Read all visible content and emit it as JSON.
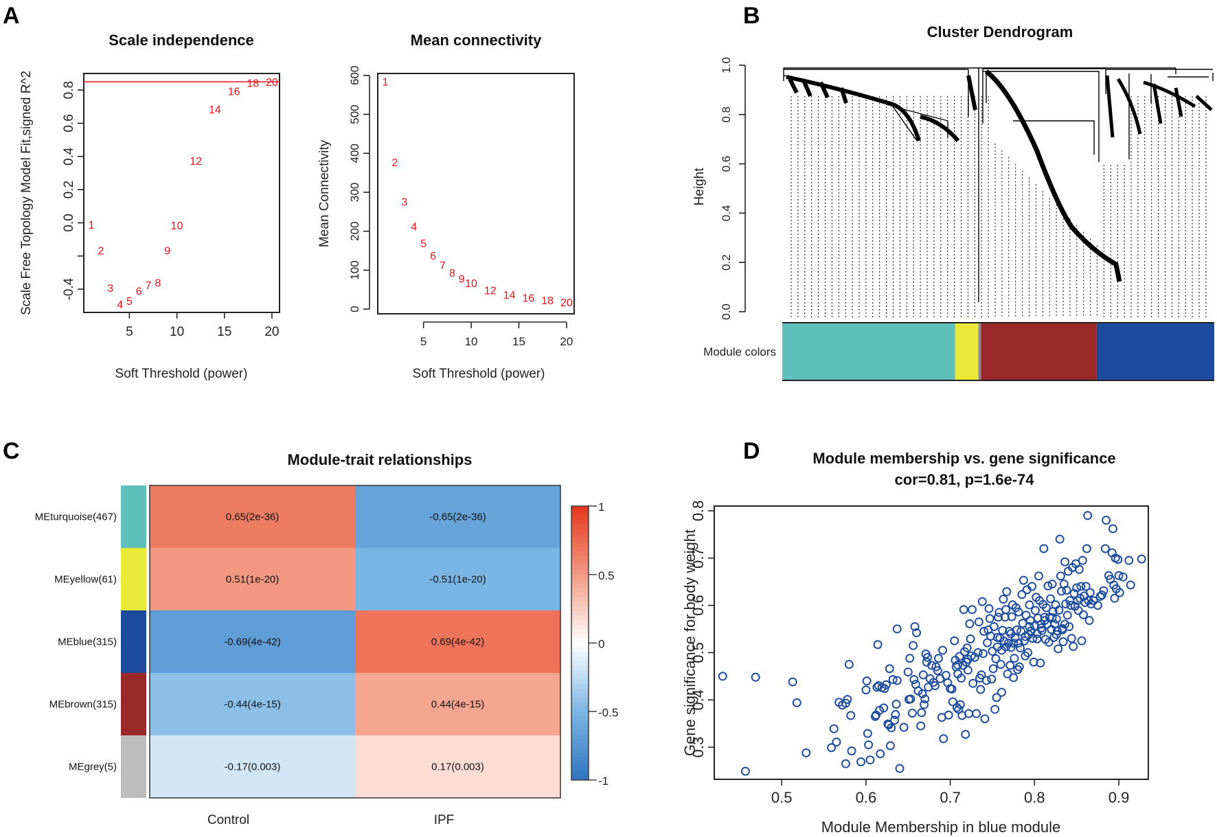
{
  "panel_labels": {
    "a": "A",
    "b": "B",
    "c": "C",
    "d": "D"
  },
  "chart_data": [
    {
      "id": "scale_independence",
      "type": "scatter",
      "marker": "text-label",
      "title": "Scale independence",
      "xlabel": "Soft Threshold (power)",
      "ylabel": "Scale Free Topology Model Fit,signed R^2",
      "xlim": [
        0.2,
        20.8
      ],
      "ylim": [
        -0.54,
        0.9
      ],
      "xticks": [
        5,
        10,
        15,
        20
      ],
      "yticks": [
        -0.4,
        -0.2,
        0.0,
        0.2,
        0.4,
        0.6,
        0.8
      ],
      "ytick_labels": [
        "-0.4",
        "",
        "0.0",
        "0.2",
        "0.4",
        "0.6",
        "0.8"
      ],
      "hline": {
        "y": 0.85,
        "color": "#e8121b"
      },
      "point_color": "#e8121b",
      "points": [
        {
          "x": 1,
          "y": -0.01,
          "label": "1"
        },
        {
          "x": 2,
          "y": -0.165,
          "label": "2"
        },
        {
          "x": 3,
          "y": -0.39,
          "label": "3"
        },
        {
          "x": 4,
          "y": -0.49,
          "label": "4"
        },
        {
          "x": 5,
          "y": -0.47,
          "label": "5"
        },
        {
          "x": 6,
          "y": -0.41,
          "label": "6"
        },
        {
          "x": 7,
          "y": -0.375,
          "label": "7"
        },
        {
          "x": 8,
          "y": -0.36,
          "label": "8"
        },
        {
          "x": 9,
          "y": -0.165,
          "label": "9"
        },
        {
          "x": 10,
          "y": -0.015,
          "label": "10"
        },
        {
          "x": 12,
          "y": 0.375,
          "label": "12"
        },
        {
          "x": 14,
          "y": 0.685,
          "label": "14"
        },
        {
          "x": 16,
          "y": 0.795,
          "label": "16"
        },
        {
          "x": 18,
          "y": 0.845,
          "label": "18"
        },
        {
          "x": 20,
          "y": 0.85,
          "label": "20"
        }
      ]
    },
    {
      "id": "mean_connectivity",
      "type": "scatter",
      "marker": "text-label",
      "title": "Mean connectivity",
      "xlabel": "Soft Threshold (power)",
      "ylabel": "Mean Connectivity",
      "xlim": [
        0.2,
        20.8
      ],
      "ylim": [
        -12,
        605
      ],
      "xticks": [
        5,
        10,
        15,
        20
      ],
      "yticks": [
        0,
        100,
        200,
        300,
        400,
        500,
        600
      ],
      "point_color": "#e8121b",
      "points": [
        {
          "x": 1,
          "y": 585,
          "label": "1"
        },
        {
          "x": 2,
          "y": 378,
          "label": "2"
        },
        {
          "x": 3,
          "y": 276,
          "label": "3"
        },
        {
          "x": 4,
          "y": 213,
          "label": "4"
        },
        {
          "x": 5,
          "y": 170,
          "label": "5"
        },
        {
          "x": 6,
          "y": 138,
          "label": "6"
        },
        {
          "x": 7,
          "y": 113,
          "label": "7"
        },
        {
          "x": 8,
          "y": 94,
          "label": "8"
        },
        {
          "x": 9,
          "y": 79,
          "label": "9"
        },
        {
          "x": 10,
          "y": 67,
          "label": "10"
        },
        {
          "x": 12,
          "y": 49,
          "label": "12"
        },
        {
          "x": 14,
          "y": 37,
          "label": "14"
        },
        {
          "x": 16,
          "y": 29,
          "label": "16"
        },
        {
          "x": 18,
          "y": 23,
          "label": "18"
        },
        {
          "x": 20,
          "y": 18,
          "label": "20"
        }
      ]
    },
    {
      "id": "cluster_dendrogram",
      "type": "dendrogram",
      "title": "Cluster Dendrogram",
      "ylabel": "Height",
      "ylim": [
        0.0,
        1.0
      ],
      "yticks": [
        0.0,
        0.2,
        0.4,
        0.6,
        0.8,
        1.0
      ],
      "ytick_labels": [
        "0.0",
        "0.2",
        "0.4",
        "0.6",
        "0.8",
        "1.0"
      ],
      "color_bar_label": "Module colors",
      "module_blocks": [
        {
          "module": "turquoise",
          "color": "#5fbfba",
          "from": 0.0,
          "to": 0.4
        },
        {
          "module": "yellow",
          "color": "#ebe937",
          "from": 0.4,
          "to": 0.454
        },
        {
          "module": "grey",
          "color": "#8a8aa8",
          "from": 0.454,
          "to": 0.46
        },
        {
          "module": "brown",
          "color": "#9b292b",
          "from": 0.46,
          "to": 0.728
        },
        {
          "module": "blue",
          "color": "#1c4a9c",
          "from": 0.728,
          "to": 1.0
        }
      ]
    },
    {
      "id": "module_trait_relationships",
      "type": "heatmap",
      "title": "Module-trait relationships",
      "columns": [
        "Control",
        "IPF"
      ],
      "rows": [
        {
          "label": "MEturquoise(467)",
          "module_color": "#5fbfba",
          "values": [
            0.65,
            -0.65
          ],
          "texts": [
            "0.65(2e-36)",
            "-0.65(2e-36)"
          ]
        },
        {
          "label": "MEyellow(61)",
          "module_color": "#ebe937",
          "values": [
            0.51,
            -0.51
          ],
          "texts": [
            "0.51(1e-20)",
            "-0.51(1e-20)"
          ]
        },
        {
          "label": "MEblue(315)",
          "module_color": "#1c4a9c",
          "values": [
            -0.69,
            0.69
          ],
          "texts": [
            "-0.69(4e-42)",
            "0.69(4e-42)"
          ]
        },
        {
          "label": "MEbrown(315)",
          "module_color": "#9b292b",
          "values": [
            -0.44,
            0.44
          ],
          "texts": [
            "-0.44(4e-15)",
            "0.44(4e-15)"
          ]
        },
        {
          "label": "MEgrey(5)",
          "module_color": "#bdbdbd",
          "values": [
            -0.17,
            0.17
          ],
          "texts": [
            "-0.17(0.003)",
            "0.17(0.003)"
          ]
        }
      ],
      "colorbar": {
        "range": [
          -1,
          1
        ],
        "ticks": [
          1,
          0.5,
          0,
          -0.5,
          -1
        ],
        "tick_labels": [
          "1",
          "0.5",
          "0",
          "-0.5",
          "-1"
        ],
        "stops": [
          {
            "v": -1,
            "color": "#2f75bf"
          },
          {
            "v": -0.5,
            "color": "#7cb6e4"
          },
          {
            "v": 0,
            "color": "#ffffff"
          },
          {
            "v": 0.5,
            "color": "#f29a82"
          },
          {
            "v": 1,
            "color": "#e5361c"
          }
        ]
      }
    },
    {
      "id": "mm_vs_gs",
      "type": "scatter",
      "marker": "open-circle",
      "title": "Module membership vs. gene significance",
      "subtitle": "cor=0.81, p=1.6e-74",
      "xlabel": "Module Membership in blue module",
      "ylabel": "Gene significance for body weight",
      "xlim": [
        0.42,
        0.935
      ],
      "ylim": [
        0.232,
        0.81
      ],
      "xticks": [
        0.5,
        0.6,
        0.7,
        0.8,
        0.9
      ],
      "xtick_labels": [
        "0.5",
        "0.6",
        "0.7",
        "0.8",
        "0.9"
      ],
      "yticks": [
        0.3,
        0.4,
        0.5,
        0.6,
        0.7,
        0.8
      ],
      "ytick_labels": [
        "0.3",
        "0.4",
        "0.5",
        "0.6",
        "0.7",
        "0.8"
      ],
      "point_color": "#1f4e9e",
      "x": [
        0.43,
        0.469,
        0.513,
        0.518,
        0.529,
        0.457,
        0.559,
        0.565,
        0.562,
        0.568,
        0.572,
        0.576,
        0.578,
        0.58,
        0.582,
        0.583,
        0.576,
        0.594,
        0.6,
        0.601,
        0.602,
        0.603,
        0.605,
        0.611,
        0.612,
        0.613,
        0.614,
        0.615,
        0.616,
        0.617,
        0.619,
        0.621,
        0.622,
        0.624,
        0.626,
        0.627,
        0.628,
        0.629,
        0.63,
        0.632,
        0.634,
        0.635,
        0.636,
        0.637,
        0.637,
        0.64,
        0.645,
        0.65,
        0.651,
        0.652,
        0.653,
        0.655,
        0.656,
        0.657,
        0.658,
        0.659,
        0.66,
        0.662,
        0.665,
        0.666,
        0.667,
        0.668,
        0.669,
        0.67,
        0.671,
        0.672,
        0.673,
        0.674,
        0.676,
        0.678,
        0.68,
        0.682,
        0.683,
        0.685,
        0.686,
        0.688,
        0.69,
        0.691,
        0.692,
        0.695,
        0.697,
        0.698,
        0.7,
        0.702,
        0.703,
        0.705,
        0.706,
        0.707,
        0.708,
        0.709,
        0.71,
        0.711,
        0.712,
        0.713,
        0.714,
        0.715,
        0.716,
        0.717,
        0.718,
        0.719,
        0.72,
        0.721,
        0.722,
        0.723,
        0.724,
        0.725,
        0.726,
        0.727,
        0.729,
        0.731,
        0.734,
        0.735,
        0.736,
        0.737,
        0.738,
        0.739,
        0.74,
        0.741,
        0.743,
        0.745,
        0.746,
        0.747,
        0.748,
        0.749,
        0.75,
        0.751,
        0.752,
        0.753,
        0.754,
        0.755,
        0.756,
        0.757,
        0.758,
        0.759,
        0.76,
        0.761,
        0.762,
        0.763,
        0.764,
        0.765,
        0.766,
        0.767,
        0.768,
        0.769,
        0.77,
        0.771,
        0.772,
        0.773,
        0.774,
        0.775,
        0.776,
        0.777,
        0.778,
        0.779,
        0.78,
        0.781,
        0.782,
        0.783,
        0.784,
        0.785,
        0.786,
        0.787,
        0.788,
        0.789,
        0.79,
        0.791,
        0.792,
        0.793,
        0.794,
        0.795,
        0.796,
        0.797,
        0.798,
        0.799,
        0.8,
        0.801,
        0.802,
        0.803,
        0.804,
        0.805,
        0.806,
        0.807,
        0.808,
        0.809,
        0.81,
        0.811,
        0.812,
        0.813,
        0.814,
        0.815,
        0.816,
        0.817,
        0.818,
        0.819,
        0.82,
        0.821,
        0.822,
        0.823,
        0.824,
        0.825,
        0.826,
        0.827,
        0.828,
        0.829,
        0.83,
        0.831,
        0.832,
        0.833,
        0.834,
        0.835,
        0.836,
        0.837,
        0.838,
        0.839,
        0.84,
        0.841,
        0.842,
        0.843,
        0.844,
        0.845,
        0.846,
        0.847,
        0.848,
        0.849,
        0.85,
        0.851,
        0.852,
        0.853,
        0.854,
        0.855,
        0.856,
        0.857,
        0.858,
        0.859,
        0.86,
        0.861,
        0.862,
        0.863,
        0.864,
        0.865,
        0.866,
        0.867,
        0.87,
        0.875,
        0.878,
        0.88,
        0.882,
        0.884,
        0.885,
        0.888,
        0.89,
        0.892,
        0.893,
        0.894,
        0.895,
        0.896,
        0.897,
        0.899,
        0.9,
        0.901,
        0.905,
        0.912,
        0.914,
        0.927,
        0.772,
        0.781,
        0.794,
        0.803,
        0.812,
        0.826,
        0.833,
        0.744,
        0.756,
        0.766,
        0.789,
        0.808,
        0.821,
        0.836,
        0.709,
        0.721,
        0.733,
        0.761,
        0.775,
        0.798
      ],
      "y": [
        0.45,
        0.448,
        0.438,
        0.394,
        0.288,
        0.249,
        0.299,
        0.311,
        0.339,
        0.395,
        0.389,
        0.393,
        0.401,
        0.475,
        0.367,
        0.292,
        0.265,
        0.269,
        0.421,
        0.44,
        0.329,
        0.305,
        0.273,
        0.365,
        0.368,
        0.427,
        0.517,
        0.43,
        0.378,
        0.286,
        0.426,
        0.383,
        0.424,
        0.432,
        0.349,
        0.347,
        0.466,
        0.303,
        0.341,
        0.443,
        0.357,
        0.369,
        0.391,
        0.441,
        0.55,
        0.255,
        0.342,
        0.459,
        0.401,
        0.488,
        0.402,
        0.372,
        0.515,
        0.443,
        0.555,
        0.433,
        0.542,
        0.419,
        0.345,
        0.373,
        0.413,
        0.453,
        0.39,
        0.402,
        0.497,
        0.48,
        0.49,
        0.427,
        0.445,
        0.473,
        0.437,
        0.43,
        0.47,
        0.462,
        0.488,
        0.445,
        0.363,
        0.505,
        0.318,
        0.452,
        0.436,
        0.368,
        0.424,
        0.423,
        0.396,
        0.525,
        0.484,
        0.47,
        0.384,
        0.455,
        0.38,
        0.492,
        0.39,
        0.446,
        0.367,
        0.473,
        0.591,
        0.502,
        0.327,
        0.48,
        0.51,
        0.463,
        0.371,
        0.561,
        0.529,
        0.493,
        0.591,
        0.435,
        0.49,
        0.371,
        0.565,
        0.446,
        0.422,
        0.453,
        0.608,
        0.498,
        0.545,
        0.36,
        0.441,
        0.548,
        0.593,
        0.572,
        0.535,
        0.444,
        0.503,
        0.466,
        0.555,
        0.38,
        0.487,
        0.405,
        0.512,
        0.575,
        0.585,
        0.531,
        0.475,
        0.416,
        0.547,
        0.613,
        0.524,
        0.575,
        0.591,
        0.629,
        0.455,
        0.52,
        0.545,
        0.473,
        0.511,
        0.576,
        0.601,
        0.447,
        0.488,
        0.531,
        0.595,
        0.548,
        0.464,
        0.586,
        0.47,
        0.51,
        0.545,
        0.623,
        0.562,
        0.653,
        0.525,
        0.493,
        0.579,
        0.633,
        0.5,
        0.538,
        0.601,
        0.568,
        0.546,
        0.64,
        0.53,
        0.48,
        0.556,
        0.589,
        0.617,
        0.529,
        0.573,
        0.662,
        0.61,
        0.478,
        0.56,
        0.547,
        0.602,
        0.72,
        0.575,
        0.528,
        0.595,
        0.56,
        0.641,
        0.522,
        0.575,
        0.614,
        0.549,
        0.645,
        0.587,
        0.532,
        0.56,
        0.601,
        0.571,
        0.546,
        0.508,
        0.59,
        0.74,
        0.662,
        0.63,
        0.551,
        0.523,
        0.645,
        0.692,
        0.603,
        0.632,
        0.579,
        0.672,
        0.555,
        0.61,
        0.6,
        0.53,
        0.68,
        0.513,
        0.625,
        0.598,
        0.688,
        0.637,
        0.61,
        0.589,
        0.676,
        0.615,
        0.64,
        0.525,
        0.695,
        0.58,
        0.62,
        0.606,
        0.64,
        0.72,
        0.79,
        0.61,
        0.568,
        0.627,
        0.603,
        0.61,
        0.6,
        0.619,
        0.622,
        0.631,
        0.72,
        0.78,
        0.663,
        0.655,
        0.711,
        0.762,
        0.643,
        0.615,
        0.7,
        0.635,
        0.697,
        0.663,
        0.627,
        0.66,
        0.695,
        0.643,
        0.698,
        0.54,
        0.52,
        0.555,
        0.54,
        0.568,
        0.538,
        0.548,
        0.521,
        0.532,
        0.512,
        0.534,
        0.552,
        0.574,
        0.56,
        0.474,
        0.486,
        0.5,
        0.505,
        0.52,
        0.53
      ]
    }
  ]
}
